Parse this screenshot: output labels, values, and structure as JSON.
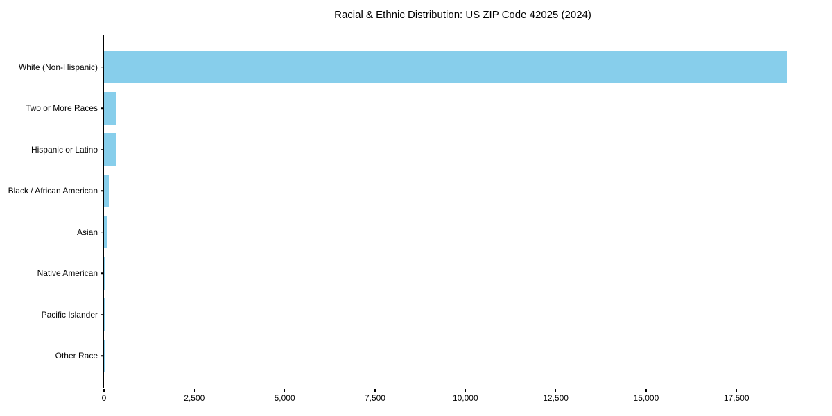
{
  "chart_data": {
    "type": "bar",
    "orientation": "horizontal",
    "title": "Racial & Ethnic Distribution: US ZIP Code 42025 (2024)",
    "categories": [
      "White (Non-Hispanic)",
      "Two or More Races",
      "Hispanic or Latino",
      "Black / African American",
      "Asian",
      "Native American",
      "Pacific Islander",
      "Other Race"
    ],
    "values": [
      18900,
      340,
      350,
      140,
      95,
      40,
      5,
      2
    ],
    "xlabel": "",
    "ylabel": "",
    "xlim": [
      0,
      19855
    ],
    "x_ticks": [
      0,
      2500,
      5000,
      7500,
      10000,
      12500,
      15000,
      17500
    ],
    "x_tick_labels": [
      "0",
      "2,500",
      "5,000",
      "7,500",
      "10,000",
      "12,500",
      "15,000",
      "17,500"
    ],
    "bar_color": "#87CEEB",
    "grid": false,
    "legend": null
  }
}
